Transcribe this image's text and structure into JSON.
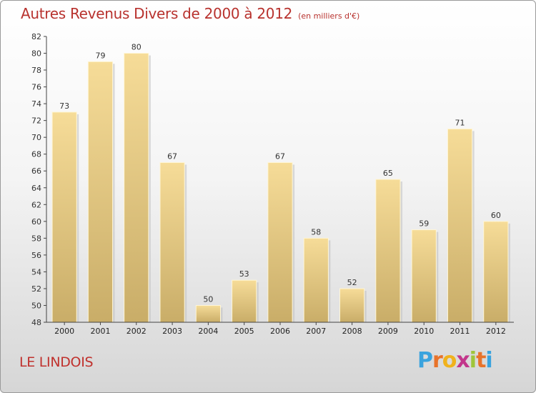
{
  "header": {
    "title": "Autres Revenus Divers de 2000 à 2012",
    "subtitle": "(en milliers d'€)"
  },
  "footer": {
    "place": "LE LINDOIS",
    "logo_letters": [
      "P",
      "r",
      "o",
      "x",
      "i",
      "t",
      "i"
    ]
  },
  "colors": {
    "title": "#b8322e",
    "bar_top": "#f6dc98",
    "bar_bottom": "#c9ad68",
    "logo": [
      "#3aa3de",
      "#e8732a",
      "#f0b21c",
      "#c2368b",
      "#9fc53a",
      "#e8732a",
      "#3aa3de"
    ]
  },
  "chart_data": {
    "type": "bar",
    "categories": [
      "2000",
      "2001",
      "2002",
      "2003",
      "2004",
      "2005",
      "2006",
      "2007",
      "2008",
      "2009",
      "2010",
      "2011",
      "2012"
    ],
    "values": [
      73,
      79,
      80,
      67,
      50,
      53,
      67,
      58,
      52,
      65,
      59,
      71,
      60
    ],
    "ylim": [
      48,
      82
    ],
    "yticks": [
      48,
      50,
      52,
      54,
      56,
      58,
      60,
      62,
      64,
      66,
      68,
      70,
      72,
      74,
      76,
      78,
      80,
      82
    ],
    "grid": false,
    "data_labels": true
  }
}
